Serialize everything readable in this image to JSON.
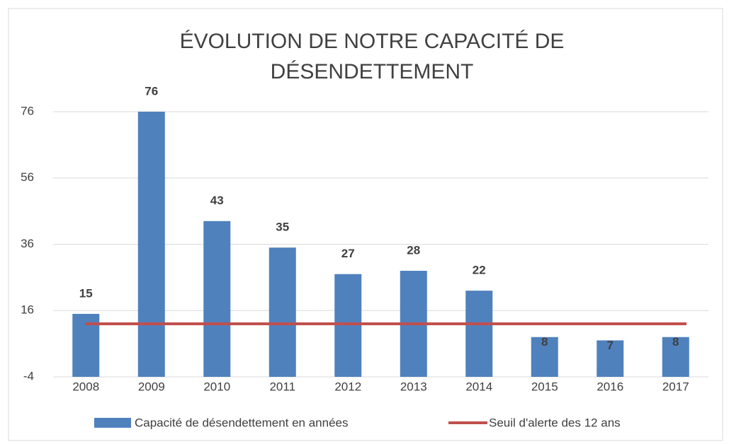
{
  "chart_data": {
    "type": "bar_line",
    "title": [
      "ÉVOLUTION DE NOTRE CAPACITÉ DE",
      "DÉSENDETTEMENT"
    ],
    "categories": [
      "2008",
      "2009",
      "2010",
      "2011",
      "2012",
      "2013",
      "2014",
      "2015",
      "2016",
      "2017"
    ],
    "series": [
      {
        "name": "Capacité de désendettement en années",
        "type": "bar",
        "color": "#4f81bd",
        "values": [
          15,
          76,
          43,
          35,
          27,
          28,
          22,
          8,
          7,
          8
        ]
      },
      {
        "name": "Seuil d'alerte des 12 ans",
        "type": "line",
        "color": "#c0504d",
        "values": [
          12,
          12,
          12,
          12,
          12,
          12,
          12,
          12,
          12,
          12
        ]
      }
    ],
    "ylim": [
      -4,
      76
    ],
    "yticks": [
      -4,
      16,
      36,
      56,
      76
    ],
    "grid": true,
    "legend": "bottom"
  }
}
